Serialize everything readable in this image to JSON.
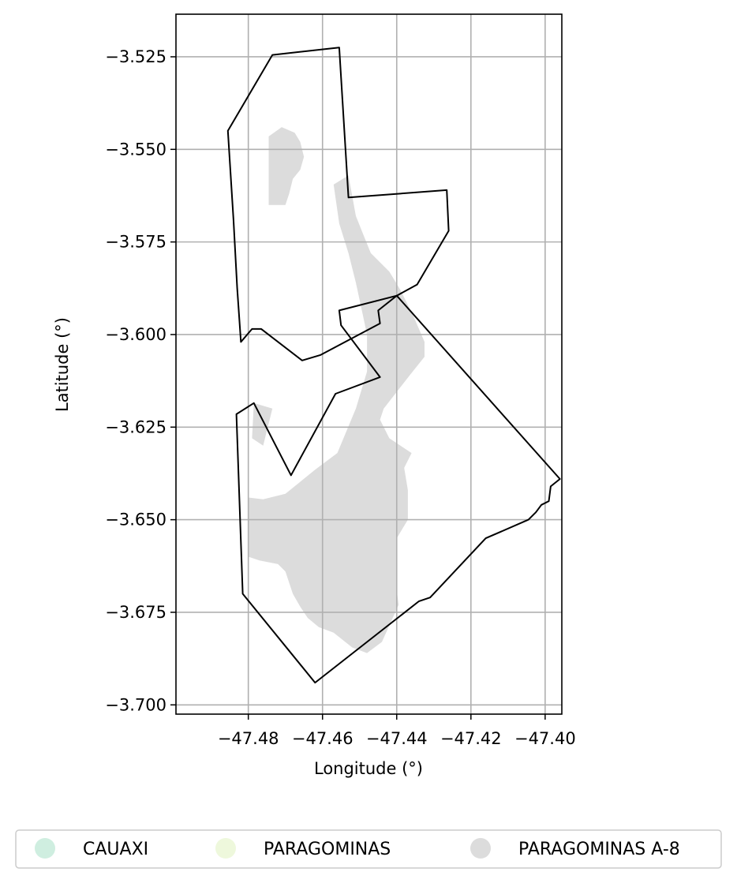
{
  "map": {
    "xlabel": "Longitude (°)",
    "ylabel": "Latitude (°)",
    "xlim": [
      -47.4995,
      -47.3955
    ],
    "ylim": [
      -3.7025,
      -3.5135
    ],
    "x_ticks": [
      {
        "value": -47.48,
        "label": "−47.48"
      },
      {
        "value": -47.46,
        "label": "−47.46"
      },
      {
        "value": -47.44,
        "label": "−47.44"
      },
      {
        "value": -47.42,
        "label": "−47.42"
      },
      {
        "value": -47.4,
        "label": "−47.40"
      }
    ],
    "y_ticks": [
      {
        "value": -3.525,
        "label": "−3.525"
      },
      {
        "value": -3.55,
        "label": "−3.550"
      },
      {
        "value": -3.575,
        "label": "−3.575"
      },
      {
        "value": -3.6,
        "label": "−3.600"
      },
      {
        "value": -3.625,
        "label": "−3.625"
      },
      {
        "value": -3.65,
        "label": "−3.650"
      },
      {
        "value": -3.675,
        "label": "−3.675"
      },
      {
        "value": -3.7,
        "label": "−3.700"
      }
    ],
    "grid": true,
    "legend_position": "bottom",
    "colors": {
      "gridline": "#b0b0b0",
      "boundary": "#000000",
      "fill": "#dcdcdc"
    },
    "legend": [
      {
        "label": "CAUAXI",
        "color": "#cfeee0"
      },
      {
        "label": "PARAGOMINAS",
        "color": "#eef8dc"
      },
      {
        "label": "PARAGOMINAS A-8",
        "color": "#dcdcdc"
      }
    ],
    "boundary_north": [
      [
        -47.4735,
        -3.5245
      ],
      [
        -47.4555,
        -3.5225
      ],
      [
        -47.453,
        -3.563
      ],
      [
        -47.4265,
        -3.561
      ],
      [
        -47.426,
        -3.572
      ],
      [
        -47.4345,
        -3.5865
      ],
      [
        -47.44,
        -3.5895
      ],
      [
        -47.445,
        -3.5935
      ],
      [
        -47.4445,
        -3.597
      ],
      [
        -47.4605,
        -3.6055
      ],
      [
        -47.4655,
        -3.607
      ],
      [
        -47.4765,
        -3.5985
      ],
      [
        -47.479,
        -3.5985
      ],
      [
        -47.482,
        -3.602
      ],
      [
        -47.483,
        -3.5875
      ],
      [
        -47.484,
        -3.569
      ],
      [
        -47.4855,
        -3.545
      ],
      [
        -47.4735,
        -3.5245
      ]
    ],
    "boundary_south": [
      [
        -47.4832,
        -3.6215
      ],
      [
        -47.4785,
        -3.6185
      ],
      [
        -47.4685,
        -3.638
      ],
      [
        -47.4565,
        -3.616
      ],
      [
        -47.4445,
        -3.6115
      ],
      [
        -47.455,
        -3.5975
      ],
      [
        -47.4555,
        -3.5935
      ],
      [
        -47.44,
        -3.5895
      ],
      [
        -47.396,
        -3.639
      ],
      [
        -47.3985,
        -3.641
      ],
      [
        -47.399,
        -3.645
      ],
      [
        -47.401,
        -3.646
      ],
      [
        -47.4025,
        -3.648
      ],
      [
        -47.4045,
        -3.65
      ],
      [
        -47.416,
        -3.655
      ],
      [
        -47.431,
        -3.671
      ],
      [
        -47.434,
        -3.672
      ],
      [
        -47.462,
        -3.694
      ],
      [
        -47.4815,
        -3.67
      ],
      [
        -47.4832,
        -3.6215
      ]
    ],
    "fill_regions": [
      [
        [
          -47.4745,
          -3.5465
        ],
        [
          -47.471,
          -3.544
        ],
        [
          -47.4675,
          -3.5455
        ],
        [
          -47.466,
          -3.548
        ],
        [
          -47.465,
          -3.552
        ],
        [
          -47.466,
          -3.5555
        ],
        [
          -47.468,
          -3.558
        ],
        [
          -47.469,
          -3.562
        ],
        [
          -47.47,
          -3.565
        ],
        [
          -47.4745,
          -3.565
        ],
        [
          -47.4745,
          -3.5465
        ]
      ],
      [
        [
          -47.457,
          -3.5595
        ],
        [
          -47.453,
          -3.557
        ],
        [
          -47.451,
          -3.568
        ],
        [
          -47.449,
          -3.573
        ],
        [
          -47.447,
          -3.578
        ],
        [
          -47.442,
          -3.583
        ],
        [
          -47.439,
          -3.588
        ],
        [
          -47.4355,
          -3.595
        ],
        [
          -47.4325,
          -3.602
        ],
        [
          -47.4325,
          -3.606
        ],
        [
          -47.4365,
          -3.611
        ],
        [
          -47.4435,
          -3.62
        ],
        [
          -47.4445,
          -3.623
        ],
        [
          -47.442,
          -3.628
        ],
        [
          -47.436,
          -3.632
        ],
        [
          -47.438,
          -3.636
        ],
        [
          -47.437,
          -3.642
        ],
        [
          -47.437,
          -3.65
        ],
        [
          -47.44,
          -3.655
        ],
        [
          -47.44,
          -3.662
        ],
        [
          -47.44,
          -3.669
        ],
        [
          -47.4395,
          -3.673
        ],
        [
          -47.444,
          -3.683
        ],
        [
          -47.448,
          -3.686
        ],
        [
          -47.452,
          -3.6845
        ],
        [
          -47.457,
          -3.6805
        ],
        [
          -47.461,
          -3.679
        ],
        [
          -47.464,
          -3.6765
        ],
        [
          -47.466,
          -3.6735
        ],
        [
          -47.468,
          -3.67
        ],
        [
          -47.47,
          -3.664
        ],
        [
          -47.472,
          -3.662
        ],
        [
          -47.477,
          -3.661
        ],
        [
          -47.48,
          -3.66
        ],
        [
          -47.48,
          -3.644
        ],
        [
          -47.476,
          -3.6445
        ],
        [
          -47.47,
          -3.643
        ],
        [
          -47.462,
          -3.6365
        ],
        [
          -47.456,
          -3.632
        ],
        [
          -47.451,
          -3.62
        ],
        [
          -47.448,
          -3.61
        ],
        [
          -47.448,
          -3.6
        ],
        [
          -47.4495,
          -3.593
        ],
        [
          -47.451,
          -3.586
        ],
        [
          -47.453,
          -3.578
        ],
        [
          -47.4555,
          -3.57
        ],
        [
          -47.457,
          -3.5595
        ]
      ],
      [
        [
          -47.4735,
          -3.62
        ],
        [
          -47.4785,
          -3.6185
        ],
        [
          -47.479,
          -3.628
        ],
        [
          -47.476,
          -3.63
        ],
        [
          -47.4735,
          -3.62
        ]
      ]
    ]
  }
}
